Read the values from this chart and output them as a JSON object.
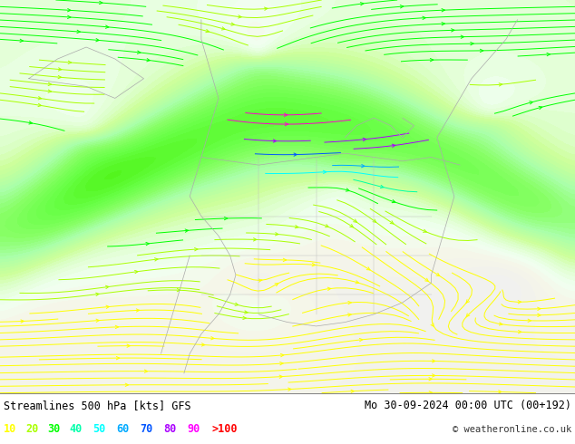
{
  "title_left": "Streamlines 500 hPa [kts] GFS",
  "title_right": "Mo 30-09-2024 00:00 UTC (00+192)",
  "copyright": "© weatheronline.co.uk",
  "legend_values": [
    "10",
    "20",
    "30",
    "40",
    "50",
    "60",
    "70",
    "80",
    "90",
    ">100"
  ],
  "legend_colors": [
    "#ffff00",
    "#aaff00",
    "#00ff00",
    "#00ffaa",
    "#00ffff",
    "#00aaff",
    "#0055ff",
    "#aa00ff",
    "#ff00ff",
    "#ff0000"
  ],
  "bg_color": "#ffffff",
  "bottom_bar_color": "#d8d8d8",
  "title_color": "#000000",
  "land_bg": "#f0f0f0",
  "ocean_bg": "#e8e8e8",
  "green_fill_light": "#ccffcc",
  "green_fill_mid": "#aaffaa",
  "green_fill_strong": "#88ff44",
  "fig_width": 6.34,
  "fig_height": 4.9,
  "dpi": 100
}
